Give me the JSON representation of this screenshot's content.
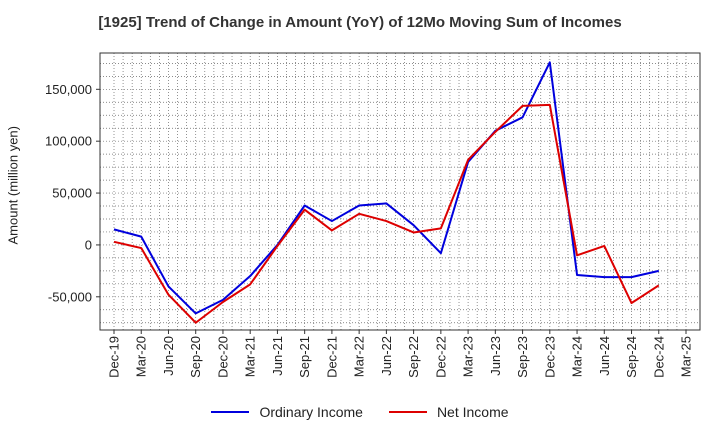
{
  "chart_data": {
    "type": "line",
    "title": "[1925]  Trend of Change in Amount (YoY) of 12Mo Moving Sum of Incomes",
    "xlabel": "",
    "ylabel": "Amount (million yen)",
    "categories": [
      "Dec-19",
      "Mar-20",
      "Jun-20",
      "Sep-20",
      "Dec-20",
      "Mar-21",
      "Jun-21",
      "Sep-21",
      "Dec-21",
      "Mar-22",
      "Jun-22",
      "Sep-22",
      "Dec-22",
      "Mar-23",
      "Jun-23",
      "Sep-23",
      "Dec-23",
      "Mar-24",
      "Jun-24",
      "Sep-24",
      "Dec-24",
      "Mar-25"
    ],
    "ylim": [
      -82000,
      185000
    ],
    "yticks": [
      -50000,
      0,
      50000,
      100000,
      150000
    ],
    "ytick_labels": [
      "-50,000",
      "0",
      "50,000",
      "100,000",
      "150,000"
    ],
    "grid": true,
    "legend_position": "bottom",
    "series": [
      {
        "name": "Ordinary Income",
        "color": "#0000dd",
        "values": [
          15000,
          8000,
          -40000,
          -66000,
          -53000,
          -30000,
          0,
          38000,
          23000,
          38000,
          40000,
          19000,
          -8000,
          80000,
          110000,
          123000,
          176000,
          -29000,
          -31000,
          -31000,
          -25000,
          null
        ]
      },
      {
        "name": "Net Income",
        "color": "#dd0000",
        "values": [
          3000,
          -3000,
          -48000,
          -75000,
          -55000,
          -38000,
          -1000,
          34000,
          14000,
          30000,
          23000,
          12000,
          16000,
          82000,
          109000,
          134000,
          135000,
          -10000,
          -1000,
          -56000,
          -39000,
          null
        ]
      }
    ]
  }
}
